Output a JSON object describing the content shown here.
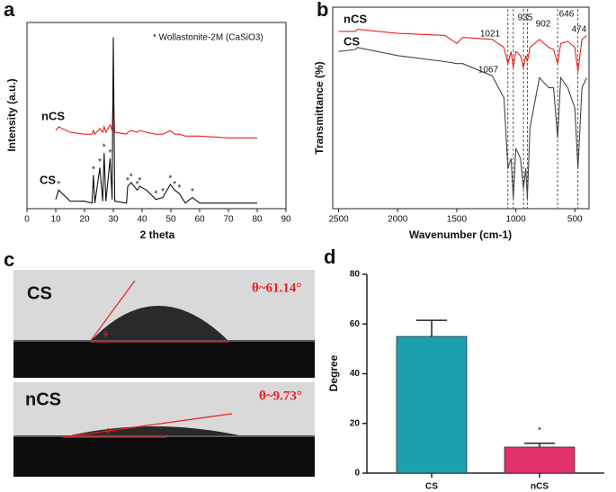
{
  "panel_labels": [
    "a",
    "b",
    "c",
    "d"
  ],
  "chart_data": [
    {
      "type": "line",
      "title": "* Wollastonite-2M (CaSiO3)",
      "x_label": "2 theta",
      "y_label": "Intensity (a.u.)",
      "x": [
        10,
        11,
        15,
        20,
        22.6,
        23.1,
        23.6,
        25.3,
        26.3,
        26.8,
        27.4,
        28.9,
        29.6,
        30.0,
        30.5,
        34.6,
        35.0,
        36.2,
        38.3,
        39.2,
        41.5,
        44.8,
        47.2,
        49.8,
        51.3,
        53.0,
        55,
        57.5,
        60,
        70,
        80
      ],
      "series": [
        {
          "name": "nCS",
          "color": "#e8201f",
          "values": [
            42,
            44,
            41,
            40,
            40,
            42,
            40,
            43,
            41,
            44,
            41,
            45,
            42,
            60,
            41,
            40,
            41,
            42,
            41,
            42,
            41,
            40,
            40,
            42,
            40,
            40,
            39,
            39,
            39,
            38,
            38
          ]
        },
        {
          "name": "CS",
          "color": "#111111",
          "values": [
            5,
            10,
            4,
            4,
            3,
            18,
            3,
            22,
            4,
            30,
            4,
            27,
            5,
            92,
            4,
            3,
            12,
            14,
            10,
            12,
            10,
            5,
            6,
            13,
            10,
            8,
            3,
            6,
            3,
            3,
            3
          ]
        }
      ],
      "peak_marker": "*",
      "peak_marker_x": [
        11,
        23.1,
        25.3,
        26.8,
        28.9,
        35.0,
        36.2,
        38.3,
        39.2,
        44.8,
        47.2,
        49.8,
        51.3,
        53.0,
        57.5
      ],
      "xlim": [
        0,
        90
      ],
      "xticks": [
        0,
        10,
        20,
        30,
        40,
        50,
        60,
        70,
        80,
        90
      ],
      "ylim": [
        0,
        100
      ]
    },
    {
      "type": "line",
      "x_label": "Wavenumber (cm-1)",
      "y_label": "Transmittance (%)",
      "x": [
        2500,
        2360,
        2340,
        2000,
        1600,
        1500,
        1450,
        1200,
        1100,
        1067,
        1040,
        1021,
        1000,
        960,
        935,
        915,
        902,
        880,
        800,
        720,
        680,
        646,
        620,
        560,
        500,
        474,
        440,
        400
      ],
      "series": [
        {
          "name": "nCS",
          "color": "#e8201f",
          "values": [
            88,
            88,
            89,
            87,
            86,
            82,
            85,
            84,
            80,
            72,
            78,
            70,
            78,
            76,
            70,
            76,
            73,
            80,
            84,
            80,
            79,
            72,
            82,
            83,
            80,
            68,
            84,
            86
          ]
        },
        {
          "name": "CS",
          "color": "#444444",
          "values": [
            78,
            79,
            80,
            76,
            73,
            72,
            72,
            66,
            55,
            20,
            25,
            5,
            30,
            25,
            10,
            20,
            5,
            40,
            65,
            60,
            60,
            35,
            65,
            60,
            50,
            20,
            60,
            65
          ]
        }
      ],
      "peak_labels": [
        1067,
        1021,
        935,
        902,
        646,
        474
      ],
      "xlim": [
        2550,
        380
      ],
      "xticks": [
        2500,
        2000,
        1500,
        1000,
        500
      ],
      "ylim": [
        0,
        100
      ]
    },
    {
      "type": "bar",
      "y_label": "Degree",
      "categories": [
        "CS",
        "nCS"
      ],
      "values": [
        55,
        10.5
      ],
      "errors": [
        6.5,
        1.5
      ],
      "colors": [
        "#1b9fb1",
        "#e2336a"
      ],
      "significance": "*",
      "ylim": [
        0,
        80
      ],
      "yticks": [
        0,
        20,
        40,
        60,
        80
      ]
    }
  ],
  "photo": {
    "rows": [
      {
        "label": "CS",
        "angle": "θ~61.14°",
        "symbol": "θ"
      },
      {
        "label": "nCS",
        "angle": "θ~9.73°",
        "symbol": "θ"
      }
    ]
  }
}
